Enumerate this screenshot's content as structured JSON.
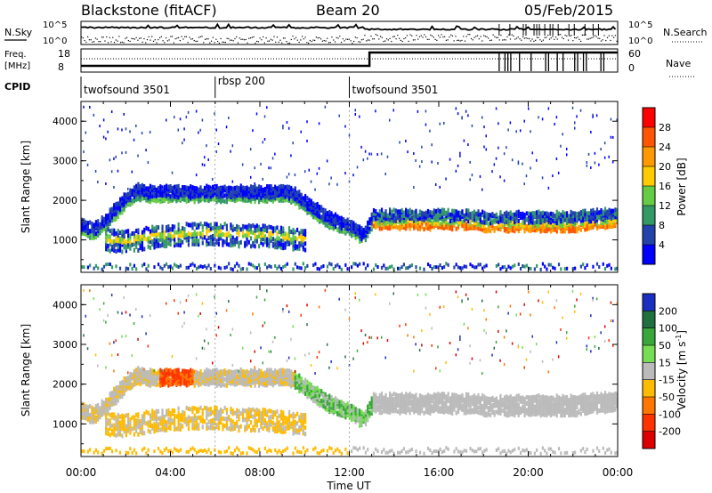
{
  "header": {
    "title": "Blackstone (fitACF)",
    "beam": "Beam 20",
    "date": "05/Feb/2015"
  },
  "top_panel": {
    "left_top_label": "N.Sky",
    "left_freq_label": "Freq.",
    "left_freq_unit": "[MHz]",
    "left_cpid_label": "CPID",
    "right_top_label": "N.Search",
    "right_bottom_label": "Nave",
    "nsky_ticks": [
      "10^5",
      "10^0"
    ],
    "freq_ticks": [
      "18",
      "8"
    ],
    "nsearch_ticks": [
      "10^5",
      "10^0"
    ],
    "nave_ticks": [
      "60",
      "0"
    ]
  },
  "cpid": [
    {
      "label": "twofsound 3501",
      "start_hour": 0,
      "end_hour": 6
    },
    {
      "label": "rbsp 200",
      "start_hour": 6,
      "end_hour": 12
    },
    {
      "label": "twofsound 3501",
      "start_hour": 12,
      "end_hour": 24
    }
  ],
  "power_colorbar": {
    "label": "Power [dB]",
    "ticks": [
      "28",
      "24",
      "20",
      "16",
      "12",
      "8",
      "4"
    ],
    "colors": [
      "#ff0000",
      "#ff5500",
      "#ff9900",
      "#ffcc00",
      "#66cc44",
      "#339966",
      "#2244aa",
      "#0000ff"
    ]
  },
  "velocity_colorbar": {
    "label_main": "Velocity [m s",
    "label_sup": "-1",
    "label_end": "]",
    "ticks": [
      "200",
      "100",
      "50",
      "15",
      "-15",
      "-50",
      "-100",
      "-200"
    ],
    "colors": [
      "#1a2fbf",
      "#1f6f3f",
      "#39a73a",
      "#77dd55",
      "#bbbbbb",
      "#ffbb00",
      "#ff7700",
      "#ff3300",
      "#dd0000"
    ]
  },
  "chart_data": [
    {
      "type": "heatmap",
      "name": "power",
      "ylabel": "Slant Range [km]",
      "xlim": [
        0,
        24
      ],
      "ylim": [
        180,
        4500
      ],
      "yticks": [
        1000,
        2000,
        3000,
        4000
      ],
      "series": [
        {
          "name": "main_band",
          "hours": [
            0,
            0.5,
            1,
            1.5,
            2,
            2.5,
            3,
            3.5,
            4,
            5,
            6,
            7,
            8,
            9,
            9.5,
            10,
            11,
            12,
            12.3,
            12.6,
            13,
            14,
            15,
            16,
            17,
            18,
            19,
            20,
            21,
            22,
            23,
            24
          ],
          "range_km": [
            1300,
            1200,
            1400,
            1700,
            2000,
            2200,
            2150,
            2150,
            2150,
            2150,
            2150,
            2150,
            2150,
            2150,
            2100,
            1900,
            1500,
            1300,
            1200,
            1050,
            1500,
            1500,
            1500,
            1500,
            1500,
            1450,
            1450,
            1450,
            1450,
            1450,
            1500,
            1550
          ]
        },
        {
          "name": "lower_band",
          "hours": [
            1,
            2,
            3,
            4,
            5,
            6,
            7,
            8,
            9,
            10
          ],
          "range_km": [
            1000,
            950,
            1050,
            1100,
            1150,
            1150,
            1100,
            1100,
            1050,
            1000
          ]
        }
      ]
    },
    {
      "type": "heatmap",
      "name": "velocity",
      "ylabel": "Slant Range [km]",
      "xlabel": "Time UT",
      "xlim": [
        0,
        24
      ],
      "ylim": [
        180,
        4500
      ],
      "yticks": [
        1000,
        2000,
        3000,
        4000
      ],
      "xticks": [
        "00:00",
        "04:00",
        "08:00",
        "12:00",
        "16:00",
        "20:00",
        "00:00"
      ]
    }
  ]
}
